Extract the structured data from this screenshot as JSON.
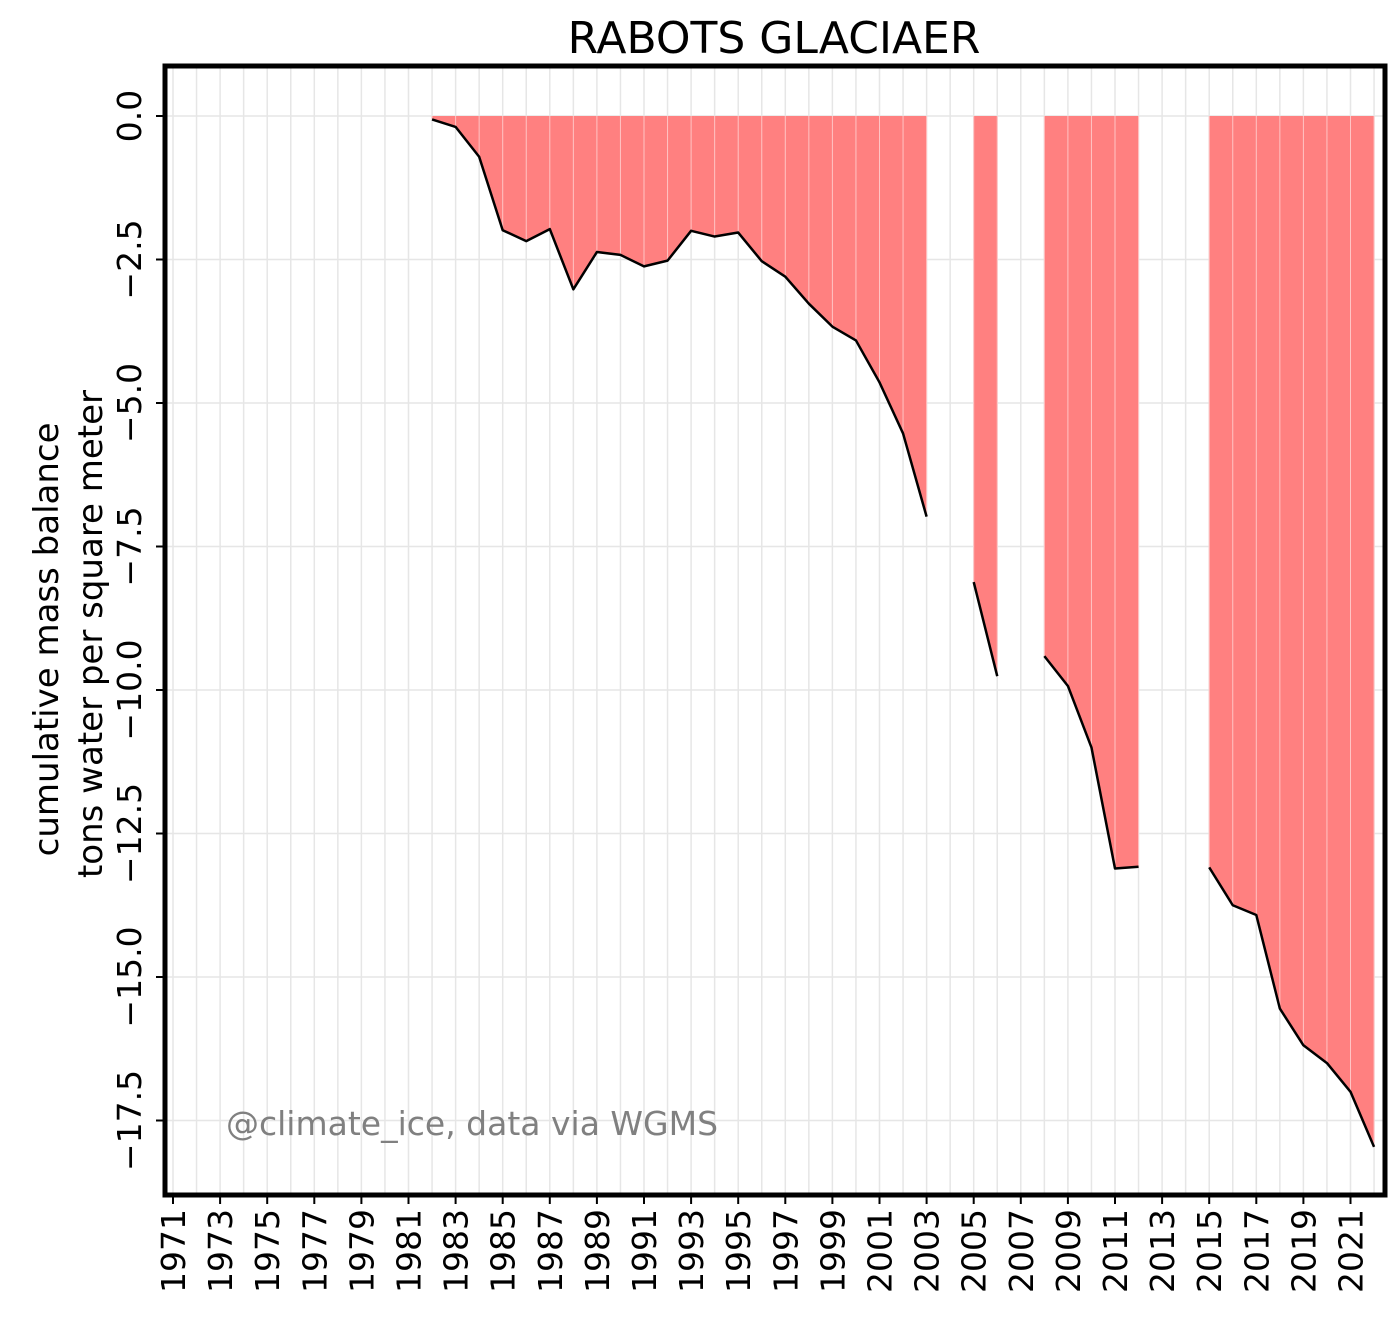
{
  "chart_data": {
    "type": "area",
    "title": "RABOTS GLACIAER",
    "ylabel_line1": "cumulative mass balance",
    "ylabel_line2": "tons water per square meter",
    "xlim": [
      1970.7,
      1972.5
    ],
    "x_tick_labels": [
      "1971",
      "1973",
      "1975",
      "1977",
      "1979",
      "1981",
      "1983",
      "1985",
      "1987",
      "1989",
      "1991",
      "1993",
      "1995",
      "1997",
      "1999",
      "2001",
      "2003",
      "2005",
      "2007",
      "2009",
      "2011",
      "2013",
      "2015",
      "2017",
      "2019",
      "2021"
    ],
    "ylim": [
      -18.3,
      0.9
    ],
    "y_ticks": [
      0.0,
      -2.5,
      -5.0,
      -7.5,
      -10.0,
      -12.5,
      -15.0,
      -17.5
    ],
    "y_tick_labels": [
      "0.0",
      "−2.5",
      "−5.0",
      "−7.5",
      "−10.0",
      "−12.5",
      "−15.0",
      "−17.5"
    ],
    "grid": true,
    "fill_color": "#ff8080",
    "line_color": "#000000",
    "segments": [
      {
        "x": [
          1982,
          1983,
          1984,
          1985,
          1986,
          1987,
          1988,
          1989,
          1990,
          1991,
          1992,
          1993,
          1994,
          1995,
          1996,
          1997,
          1998,
          1999,
          2000,
          2001,
          2002,
          2003
        ],
        "y": [
          -0.06,
          -0.19,
          -0.71,
          -1.99,
          -2.18,
          -1.97,
          -3.02,
          -2.37,
          -2.42,
          -2.62,
          -2.52,
          -2.0,
          -2.1,
          -2.03,
          -2.53,
          -2.8,
          -3.27,
          -3.67,
          -3.91,
          -4.64,
          -5.53,
          -6.98
        ]
      },
      {
        "x": [
          2005,
          2006
        ],
        "y": [
          -8.12,
          -9.76
        ]
      },
      {
        "x": [
          2008,
          2009,
          2010,
          2011,
          2012
        ],
        "y": [
          -9.41,
          -9.93,
          -11.0,
          -13.11,
          -13.08
        ]
      },
      {
        "x": [
          2015,
          2016,
          2017,
          2018,
          2019,
          2020,
          2021,
          2022
        ],
        "y": [
          -13.09,
          -13.75,
          -13.92,
          -15.55,
          -16.19,
          -16.5,
          -17.0,
          -17.96
        ]
      }
    ],
    "annotation": "@climate_ice, data via WGMS"
  }
}
